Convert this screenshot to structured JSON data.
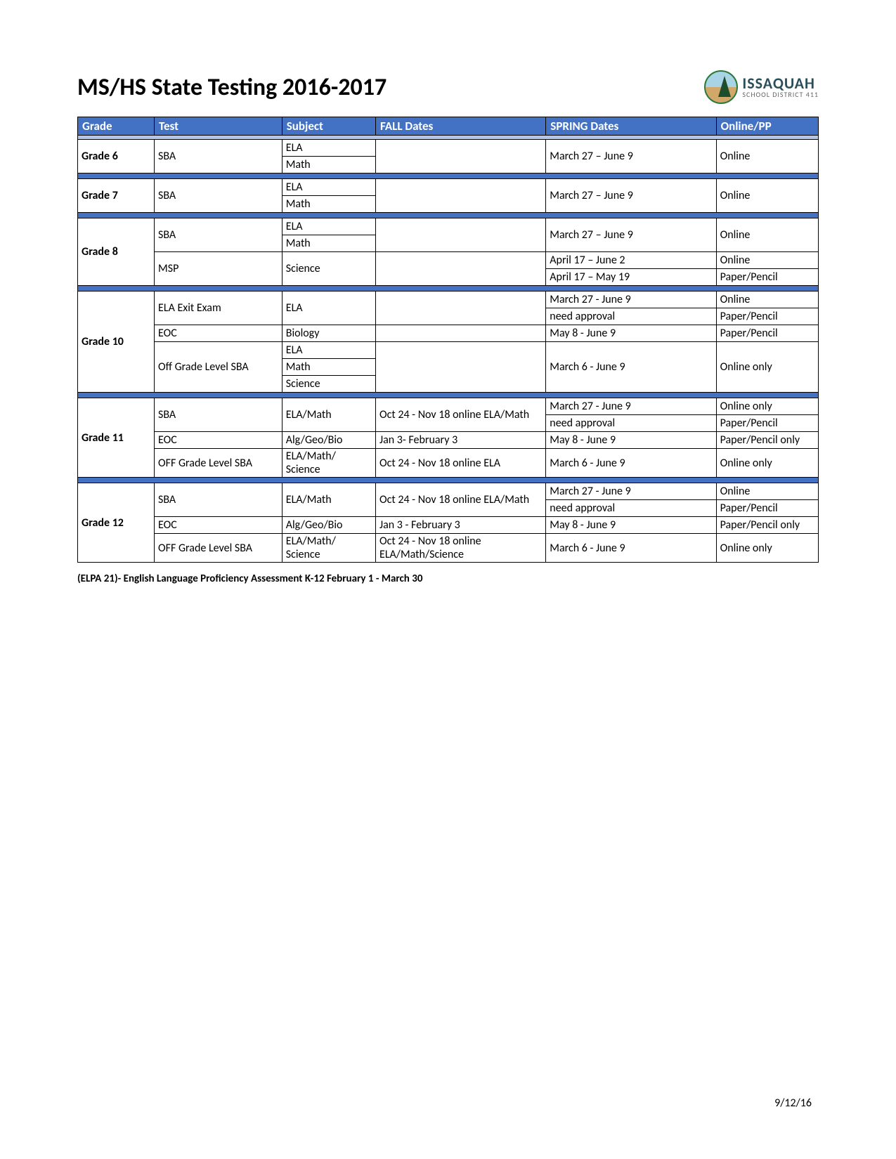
{
  "page_title": "MS/HS State Testing 2016-2017",
  "logo": {
    "name": "ISSAQUAH",
    "sub": "SCHOOL DISTRICT 411"
  },
  "footer_date": "9/12/16",
  "footnote": "(ELPA 21)- English Language Proficiency Assessment  K-12 February 1 - March 30",
  "headers": {
    "grade": "Grade",
    "test": "Test",
    "subject": "Subject",
    "fall": "FALL Dates",
    "spring": "SPRING Dates",
    "mode": "Online/PP"
  },
  "colors": {
    "header_bg": "#4372c4",
    "light_sep": "#b4c6e7",
    "highlight": "#ffff00"
  },
  "c": {
    "g6": "Grade 6",
    "g7": "Grade 7",
    "g8": "Grade 8",
    "g10": "Grade 10",
    "g11": "Grade 11",
    "g12": "Grade 12",
    "sba": "SBA",
    "msp": "MSP",
    "ela_exit": "ELA Exit Exam",
    "eoc": "EOC",
    "off_sba": "Off Grade Level SBA",
    "OFF_sba": "OFF Grade Level SBA",
    "ela": "ELA",
    "math": "Math",
    "science": "Science",
    "biology": "Biology",
    "ela_math": "ELA/Math",
    "alg_geo_bio": "Alg/Geo/Bio",
    "ela_math_sci": "ELA/Math/ Science",
    "mar27_jun9": "March 27 – June 9",
    "mar27_jun9d": "March 27 - June 9",
    "apr17_jun2": "April 17 – June 2",
    "apr17_may19": "April 17 – May 19",
    "mar6_jun9": "March 6 - June 9",
    "may8_jun9": "May 8 - June 9",
    "need_approval": "need approval",
    "oct24_nov18_em": "Oct 24 - Nov 18 online ELA/Math",
    "oct24_nov18_e": "Oct 24 - Nov 18 online ELA",
    "oct24_nov18_ems": "Oct 24 - Nov 18 online ELA/Math/Science",
    "jan3_feb3a": "Jan 3- February 3",
    "jan3_feb3b": "Jan 3 - February 3",
    "online": "Online",
    "online_only": "Online only",
    "paper_pencil": "Paper/Pencil",
    "paper_pencil_only": "Paper/Pencil only"
  }
}
